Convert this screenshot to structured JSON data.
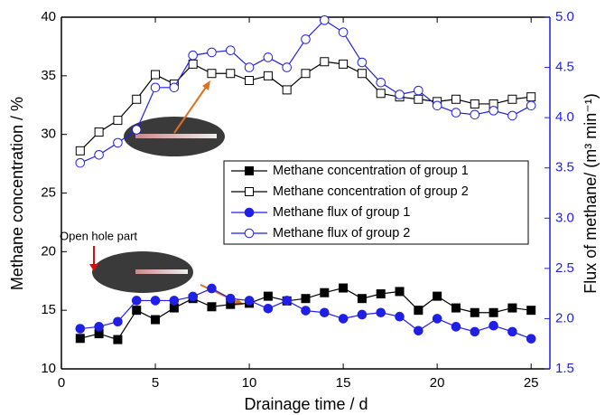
{
  "chart_data": {
    "type": "line",
    "xlabel": "Drainage time / d",
    "ylabel": "Methane concentration / %",
    "y2label": "Flux of methane/ (m³ min⁻¹)",
    "annotation": "Open hole part",
    "x": [
      1,
      2,
      3,
      4,
      5,
      6,
      7,
      8,
      9,
      10,
      11,
      12,
      13,
      14,
      15,
      16,
      17,
      18,
      19,
      20,
      21,
      22,
      23,
      24,
      25
    ],
    "xlim": [
      0,
      26
    ],
    "xticks": [
      0,
      5,
      10,
      15,
      20,
      25
    ],
    "ylim": [
      10,
      40
    ],
    "yticks": [
      10,
      15,
      20,
      25,
      30,
      35,
      40
    ],
    "y2lim": [
      1.5,
      5.0
    ],
    "y2ticks": [
      1.5,
      {
        "value": 2,
        "label": "2.0"
      },
      2.5,
      {
        "value": 3,
        "label": "3.0"
      },
      3.5,
      {
        "value": 4,
        "label": "4.0"
      },
      4.5,
      {
        "value": 5,
        "label": "5.0"
      }
    ],
    "y2color": "#1f1fe6",
    "series": [
      {
        "name": "Methane concentration of group 1",
        "color": "#000000",
        "marker": "square",
        "filled": true,
        "values": [
          12.6,
          13.0,
          12.5,
          15.0,
          14.2,
          15.2,
          16.0,
          15.3,
          15.5,
          15.6,
          16.2,
          15.8,
          16.0,
          16.5,
          16.9,
          16.0,
          16.4,
          16.6,
          15.0,
          16.2,
          15.2,
          14.8,
          14.8,
          15.2,
          15.0
        ]
      },
      {
        "name": "Methane concentration of group 2",
        "color": "#000000",
        "marker": "square",
        "filled": false,
        "values": [
          28.6,
          30.2,
          31.2,
          33.0,
          35.1,
          34.3,
          36.0,
          35.2,
          35.2,
          34.6,
          35.0,
          33.8,
          35.2,
          36.2,
          36.0,
          35.2,
          33.5,
          33.2,
          33.0,
          32.8,
          33.0,
          32.6,
          32.6,
          33.0,
          33.2
        ]
      },
      {
        "name": "Methane flux of group 1",
        "color": "#1f1fe6",
        "marker": "circle",
        "filled": true,
        "axis": "y2",
        "values": [
          1.9,
          1.92,
          1.97,
          2.18,
          2.18,
          2.18,
          2.22,
          2.3,
          2.2,
          2.18,
          2.1,
          2.18,
          2.08,
          2.06,
          2.0,
          2.04,
          2.06,
          2.02,
          1.88,
          2.0,
          1.92,
          1.87,
          1.93,
          1.87,
          1.8
        ]
      },
      {
        "name": "Methane flux of group 2",
        "color": "#1f1fe6",
        "marker": "circle",
        "filled": false,
        "axis": "y2",
        "values": [
          3.55,
          3.63,
          3.75,
          3.88,
          4.3,
          4.3,
          4.62,
          4.65,
          4.67,
          4.5,
          4.6,
          4.5,
          4.78,
          4.97,
          4.85,
          4.55,
          4.35,
          4.23,
          4.27,
          4.12,
          4.05,
          4.03,
          4.07,
          4.02,
          4.12
        ]
      }
    ]
  }
}
